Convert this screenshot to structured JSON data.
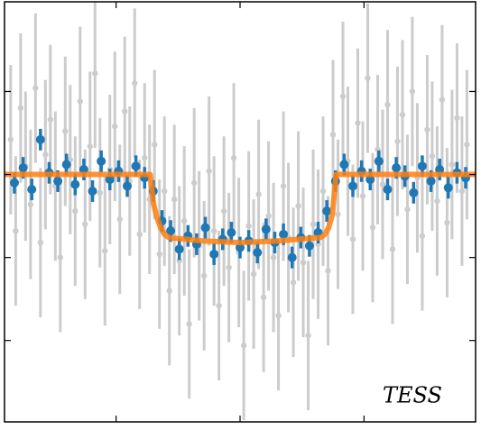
{
  "chart_data": {
    "type": "scatter",
    "annotation": "TESS",
    "xlim": [
      -0.19,
      0.19
    ],
    "xticks": [
      -0.1,
      0,
      0.1
    ],
    "ylim": [
      0.9851,
      1.0104
    ],
    "yticks": [
      0.99,
      0.995,
      1.0,
      1.005
    ],
    "series": [
      {
        "kind": "points",
        "color": "#cccccc",
        "error": 0.0045,
        "x": [
          -0.185,
          -0.181,
          -0.177,
          -0.173,
          -0.169,
          -0.165,
          -0.161,
          -0.157,
          -0.153,
          -0.149,
          -0.145,
          -0.141,
          -0.137,
          -0.133,
          -0.129,
          -0.125,
          -0.121,
          -0.117,
          -0.113,
          -0.109,
          -0.105,
          -0.101,
          -0.097,
          -0.093,
          -0.089,
          -0.085,
          -0.081,
          -0.077,
          -0.073,
          -0.069,
          -0.065,
          -0.061,
          -0.057,
          -0.053,
          -0.049,
          -0.045,
          -0.041,
          -0.037,
          -0.033,
          -0.029,
          -0.025,
          -0.021,
          -0.017,
          -0.013,
          -0.009,
          -0.005,
          -0.001,
          0.003,
          0.007,
          0.011,
          0.015,
          0.019,
          0.023,
          0.027,
          0.031,
          0.035,
          0.039,
          0.043,
          0.047,
          0.051,
          0.055,
          0.059,
          0.063,
          0.067,
          0.071,
          0.075,
          0.079,
          0.083,
          0.087,
          0.091,
          0.095,
          0.099,
          0.103,
          0.107,
          0.111,
          0.115,
          0.119,
          0.123,
          0.127,
          0.131,
          0.135,
          0.139,
          0.143,
          0.147,
          0.151,
          0.155,
          0.159,
          0.163,
          0.167,
          0.171,
          0.175,
          0.179,
          0.183
        ],
        "values": [
          1.0021,
          0.9966,
          1.004,
          1.0005,
          0.9982,
          1.0052,
          0.9959,
          1.0012,
          1.0033,
          0.9993,
          0.995,
          1.0026,
          1.0009,
          0.9978,
          1.0044,
          0.997,
          1.0017,
          1.0061,
          0.9989,
          0.9954,
          1.0003,
          1.0029,
          0.9973,
          1.0038,
          0.9996,
          1.0055,
          0.9964,
          1.001,
          0.9985,
          1.0018,
          0.9952,
          0.999,
          0.993,
          0.9985,
          0.9948,
          0.9972,
          0.991,
          0.9995,
          0.9957,
          0.9939,
          1.0002,
          0.9966,
          0.9921,
          0.9978,
          0.9944,
          1.001,
          0.9953,
          0.9897,
          0.9969,
          0.994,
          0.9988,
          0.9926,
          0.9975,
          0.995,
          0.9915,
          0.9993,
          0.9962,
          0.9935,
          0.9981,
          0.9947,
          0.9903,
          0.997,
          0.9958,
          0.999,
          0.9942,
          1.0024,
          0.9976,
          1.0047,
          1.0008,
          0.9961,
          1.0031,
          0.9987,
          1.0058,
          0.9968,
          1.0015,
          0.9994,
          1.0042,
          0.9955,
          1.002,
          1.0036,
          0.9979,
          1.005,
          0.9998,
          0.9963,
          1.0027,
          1.0011,
          0.9984,
          1.0045,
          0.9971,
          1.0006,
          1.0034,
          0.999,
          1.0018
        ]
      },
      {
        "kind": "points",
        "color": "#1f77b4",
        "error": 0.00065,
        "x": [
          -0.182,
          -0.175,
          -0.168,
          -0.161,
          -0.154,
          -0.147,
          -0.14,
          -0.133,
          -0.126,
          -0.119,
          -0.112,
          -0.105,
          -0.098,
          -0.091,
          -0.084,
          -0.077,
          -0.07,
          -0.063,
          -0.056,
          -0.049,
          -0.042,
          -0.035,
          -0.028,
          -0.021,
          -0.014,
          -0.007,
          0,
          0.007,
          0.014,
          0.021,
          0.028,
          0.035,
          0.042,
          0.049,
          0.056,
          0.063,
          0.07,
          0.077,
          0.084,
          0.091,
          0.098,
          0.105,
          0.112,
          0.119,
          0.126,
          0.133,
          0.14,
          0.147,
          0.154,
          0.161,
          0.168,
          0.175,
          0.182
        ],
        "values": [
          0.9995,
          1.0004,
          0.9991,
          1.0021,
          1.0001,
          0.9996,
          1.0006,
          0.9994,
          1.0003,
          0.999,
          1.0008,
          0.9997,
          1.0002,
          0.9993,
          1.0005,
          0.9998,
          0.999,
          0.9972,
          0.9966,
          0.9955,
          0.9963,
          0.9958,
          0.9968,
          0.9952,
          0.9961,
          0.9965,
          0.9956,
          0.996,
          0.9953,
          0.9967,
          0.9959,
          0.9964,
          0.995,
          0.9962,
          0.9957,
          0.9965,
          0.9978,
          0.9996,
          1.0006,
          0.9993,
          1.0002,
          0.9997,
          1.0008,
          0.9991,
          1.0004,
          0.9999,
          0.9989,
          1.0005,
          0.9996,
          1.0003,
          0.9992,
          1.0001,
          0.9998
        ]
      },
      {
        "kind": "line",
        "color": "#ff7f0e",
        "x": [
          -0.19,
          -0.0725,
          -0.07,
          -0.067,
          -0.064,
          -0.061,
          -0.0575,
          -0.03,
          0,
          0.03,
          0.065,
          0.0685,
          0.0715,
          0.0745,
          0.0775,
          0.19
        ],
        "values": [
          1.0,
          1.0,
          0.9983,
          0.9974,
          0.9968,
          0.9964,
          0.9962,
          0.996,
          0.9959,
          0.996,
          0.9962,
          0.9964,
          0.9968,
          0.9976,
          1.0,
          1.0
        ]
      }
    ]
  }
}
